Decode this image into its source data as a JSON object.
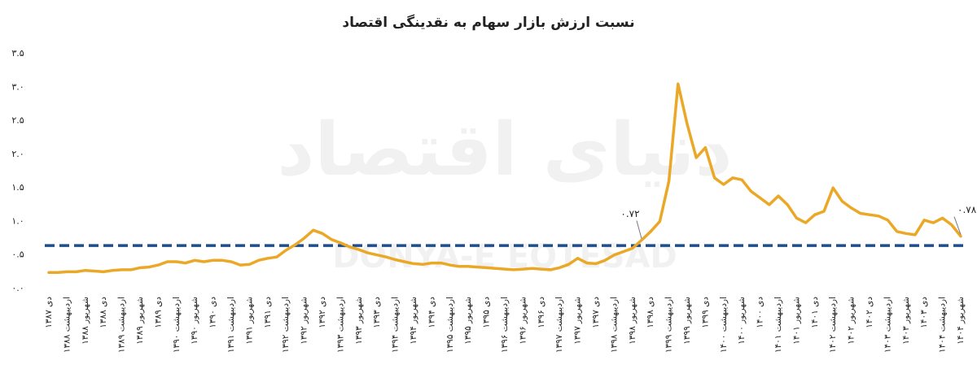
{
  "chart_data": {
    "type": "line",
    "title": "نسبت ارزش بازار سهام به نقدینگی اقتصاد",
    "watermark": [
      "دنیای اقتصاد",
      "DONYA-E EQTESAD"
    ],
    "categories": [
      "دی ۱۳۸۷",
      null,
      "اردیبهشت ۱۳۸۸",
      null,
      "شهریور ۱۳۸۸",
      null,
      "دی ۱۳۸۸",
      null,
      "اردیبهشت ۱۳۸۹",
      null,
      "شهریور ۱۳۸۹",
      null,
      "دی ۱۳۸۹",
      null,
      "اردیبهشت ۱۳۹۰",
      null,
      "شهریور ۱۳۹۰",
      null,
      "دی ۱۳۹۰",
      null,
      "اردیبهشت ۱۳۹۱",
      null,
      "شهریور ۱۳۹۱",
      null,
      "دی ۱۳۹۱",
      null,
      "اردیبهشت ۱۳۹۲",
      null,
      "شهریور ۱۳۹۲",
      null,
      "دی ۱۳۹۲",
      null,
      "اردیبهشت ۱۳۹۳",
      null,
      "شهریور ۱۳۹۳",
      null,
      "دی ۱۳۹۳",
      null,
      "اردیبهشت ۱۳۹۴",
      null,
      "شهریور ۱۳۹۴",
      null,
      "دی ۱۳۹۴",
      null,
      "اردیبهشت ۱۳۹۵",
      null,
      "شهریور ۱۳۹۵",
      null,
      "دی ۱۳۹۵",
      null,
      "اردیبهشت ۱۳۹۶",
      null,
      "شهریور ۱۳۹۶",
      null,
      "دی ۱۳۹۶",
      null,
      "اردیبهشت ۱۳۹۷",
      null,
      "شهریور ۱۳۹۷",
      null,
      "دی ۱۳۹۷",
      null,
      "اردیبهشت ۱۳۹۸",
      null,
      "شهریور ۱۳۹۸",
      null,
      "دی ۱۳۹۸",
      null,
      "اردیبهشت ۱۳۹۹",
      null,
      "شهریور ۱۳۹۹",
      null,
      "دی ۱۳۹۹",
      null,
      "اردیبهشت ۱۴۰۰",
      null,
      "شهریور ۱۴۰۰",
      null,
      "دی ۱۴۰۰",
      null,
      "اردیبهشت ۱۴۰۱",
      null,
      "شهریور ۱۴۰۱",
      null,
      "دی ۱۴۰۱",
      null,
      "اردیبهشت ۱۴۰۲",
      null,
      "شهریور ۱۴۰۲",
      null,
      "دی ۱۴۰۲",
      null,
      "اردیبهشت ۱۴۰۳",
      null,
      "شهریور ۱۴۰۳",
      null,
      "دی ۱۴۰۳",
      null,
      "اردیبهشت ۱۴۰۴",
      null,
      "شهریور ۱۴۰۴"
    ],
    "values": [
      0.24,
      0.24,
      0.25,
      0.25,
      0.27,
      0.26,
      0.25,
      0.27,
      0.28,
      0.28,
      0.31,
      0.32,
      0.35,
      0.4,
      0.4,
      0.38,
      0.42,
      0.4,
      0.42,
      0.42,
      0.4,
      0.35,
      0.36,
      0.42,
      0.45,
      0.47,
      0.57,
      0.65,
      0.75,
      0.87,
      0.82,
      0.73,
      0.68,
      0.62,
      0.58,
      0.53,
      0.5,
      0.47,
      0.43,
      0.4,
      0.37,
      0.36,
      0.38,
      0.38,
      0.35,
      0.33,
      0.33,
      0.32,
      0.31,
      0.3,
      0.29,
      0.28,
      0.29,
      0.3,
      0.29,
      0.28,
      0.31,
      0.36,
      0.45,
      0.38,
      0.37,
      0.42,
      0.5,
      0.55,
      0.6,
      0.72,
      0.85,
      1.0,
      1.6,
      3.05,
      2.45,
      1.95,
      2.1,
      1.65,
      1.55,
      1.65,
      1.62,
      1.45,
      1.35,
      1.25,
      1.38,
      1.25,
      1.05,
      0.98,
      1.1,
      1.15,
      1.5,
      1.3,
      1.2,
      1.12,
      1.1,
      1.08,
      1.02,
      0.85,
      0.82,
      0.8,
      1.02,
      0.98,
      1.05,
      0.95,
      0.78
    ],
    "value_labels": [
      null,
      null,
      null,
      null,
      null,
      null,
      null,
      null,
      null,
      null,
      null,
      null,
      null,
      null,
      null,
      null,
      null,
      null,
      null,
      null,
      null,
      null,
      null,
      null,
      null,
      null,
      null,
      null,
      null,
      null,
      null,
      null,
      null,
      null,
      null,
      null,
      null,
      null,
      null,
      null,
      null,
      null,
      null,
      null,
      null,
      null,
      null,
      null,
      null,
      null,
      null,
      null,
      null,
      null,
      null,
      null,
      null,
      null,
      null,
      null,
      null,
      null,
      null,
      null,
      null,
      "۰.۷۲",
      null,
      null,
      null,
      null,
      null,
      null,
      null,
      null,
      null,
      null,
      null,
      null,
      null,
      null,
      null,
      null,
      null,
      null,
      null,
      null,
      null,
      null,
      null,
      null,
      null,
      null,
      null,
      null,
      null,
      null,
      null,
      null,
      null,
      null,
      "۰.۷۸"
    ],
    "color": "#eba827",
    "reference_line": {
      "value": 0.64,
      "color": "#1f4e8c"
    },
    "ylim": [
      0,
      3.5
    ],
    "yticks": [
      {
        "value": 0,
        "label": "۰.۰"
      },
      {
        "value": 0.5,
        "label": "۰.۵"
      },
      {
        "value": 1,
        "label": "۱.۰"
      },
      {
        "value": 1.5,
        "label": "۱.۵"
      },
      {
        "value": 2,
        "label": "۲.۰"
      },
      {
        "value": 2.5,
        "label": "۲.۵"
      },
      {
        "value": 3,
        "label": "۳.۰"
      },
      {
        "value": 3.5,
        "label": "۳.۵"
      }
    ],
    "grid": false
  }
}
